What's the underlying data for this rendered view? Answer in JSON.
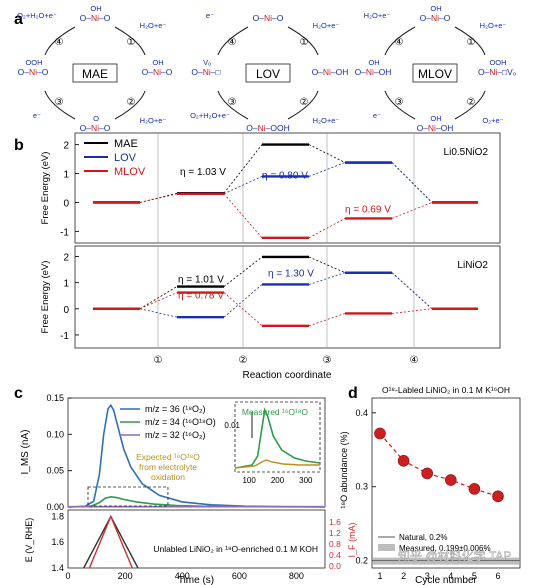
{
  "panel_letters": {
    "a": "a",
    "b": "b",
    "c": "c",
    "d": "d"
  },
  "panel_a": {
    "cycles": [
      {
        "center_label": "MAE",
        "species": {
          "top": "O–Ni–O",
          "right": "O–Ni–O",
          "bottom": "O–Ni–O",
          "left": "O–Ni–O"
        },
        "groups": {
          "top": "OH",
          "right": "OH",
          "bottom": "O",
          "left": "OOH"
        },
        "step_numbers": [
          "④",
          "①",
          "②",
          "③"
        ],
        "reactions": {
          "r4": "O₂+H₂O+e⁻",
          "r1": "H₂O+e⁻",
          "r2": "H₂O+e⁻",
          "r3": "e⁻"
        }
      },
      {
        "center_label": "LOV",
        "species": {
          "top": "O–Ni–O",
          "right": "O–Ni–OH",
          "bottom": "O–Ni–OOH",
          "left": "O–Ni–□"
        },
        "groups": {
          "top": "",
          "right": "",
          "bottom": "",
          "left": "Vₒ"
        },
        "step_numbers": [
          "④",
          "①",
          "②",
          "③"
        ],
        "reactions": {
          "r4": "e⁻",
          "r1": "H₂O+e⁻",
          "r2": "H₂O+e⁻",
          "r3": "O₂+H₂O+e⁻"
        }
      },
      {
        "center_label": "MLOV",
        "species": {
          "top": "O–Ni–O",
          "right": "O–Ni–□Vₒ",
          "bottom": "O–Ni–OH",
          "left": "O–Ni–OH"
        },
        "groups": {
          "top": "OH",
          "right": "OOH",
          "bottom": "OH",
          "left": "OH"
        },
        "step_numbers": [
          "④",
          "①",
          "②",
          "③"
        ],
        "reactions": {
          "r4": "H₂O+e⁻",
          "r1": "H₂O+e⁻",
          "r2": "O₂+e⁻",
          "r3": "e⁻"
        }
      }
    ]
  },
  "chart_data": [
    {
      "type": "line",
      "panel": "b-top",
      "annotation": "Li0.5NiO2",
      "ylabel": "Free Energy (eV)",
      "ylim": [
        -1.4,
        2.4
      ],
      "yticks": [
        -1,
        0,
        1,
        2
      ],
      "x_ticks": [
        "①",
        "②",
        "③",
        "④"
      ],
      "series": [
        {
          "name": "MAE",
          "color": "#000000",
          "values": [
            0,
            0.32,
            2.0,
            1.38,
            0
          ]
        },
        {
          "name": "LOV",
          "color": "#1a2fb0",
          "values": [
            0,
            0.3,
            0.9,
            1.38,
            0
          ]
        },
        {
          "name": "MLOV",
          "color": "#d01818",
          "values": [
            0,
            0.3,
            -1.22,
            -0.55,
            0
          ]
        }
      ],
      "overpotentials": [
        {
          "text": "η = 1.03 V",
          "color": "#000000"
        },
        {
          "text": "η = 0.80 V",
          "color": "#1a2fb0"
        },
        {
          "text": "η = 0.69 V",
          "color": "#d01818"
        }
      ]
    },
    {
      "type": "line",
      "panel": "b-bottom",
      "annotation": "LiNiO2",
      "ylabel": "Free Energy (eV)",
      "ylim": [
        -1.5,
        2.4
      ],
      "yticks": [
        -1,
        0,
        1,
        2
      ],
      "xlabel": "Reaction coordinate",
      "x_ticks": [
        "①",
        "②",
        "③",
        "④"
      ],
      "series": [
        {
          "name": "MAE",
          "color": "#000000",
          "values": [
            0,
            0.85,
            1.98,
            1.38,
            0
          ]
        },
        {
          "name": "LOV",
          "color": "#1a2fb0",
          "values": [
            0,
            -0.32,
            0.93,
            1.38,
            0
          ]
        },
        {
          "name": "MLOV",
          "color": "#d01818",
          "values": [
            0,
            0.62,
            -0.65,
            -0.18,
            0
          ]
        }
      ],
      "overpotentials": [
        {
          "text": "η = 1.01 V",
          "color": "#000000"
        },
        {
          "text": "η = 0.78 V",
          "color": "#d01818"
        },
        {
          "text": "η = 1.30 V",
          "color": "#1a2fb0"
        }
      ]
    },
    {
      "type": "line",
      "panel": "c-top",
      "ylabel": "I_MS (nA)",
      "ylim": [
        0,
        0.15
      ],
      "yticks": [
        0.0,
        0.05,
        0.1,
        0.15
      ],
      "xlim": [
        0,
        900
      ],
      "series": [
        {
          "name": "m/z = 36 (¹⁸O₂)",
          "color": "#2f6fb4",
          "x": [
            0,
            60,
            90,
            110,
            125,
            140,
            150,
            160,
            175,
            195,
            220,
            260,
            320,
            400,
            500,
            620,
            760,
            900
          ],
          "y": [
            0,
            0.001,
            0.008,
            0.045,
            0.1,
            0.135,
            0.14,
            0.133,
            0.11,
            0.08,
            0.055,
            0.032,
            0.016,
            0.007,
            0.003,
            0.0012,
            0.0005,
            0.0002
          ]
        },
        {
          "name": "m/z = 34 (¹⁶O¹⁸O)",
          "color": "#2e9a4a",
          "x": [
            0,
            80,
            110,
            130,
            150,
            170,
            200,
            240,
            300,
            380,
            480,
            600,
            900
          ],
          "y": [
            0,
            0.001,
            0.006,
            0.012,
            0.014,
            0.013,
            0.01,
            0.007,
            0.004,
            0.002,
            0.001,
            0.0004,
            0.0001
          ]
        },
        {
          "name": "m/z = 32 (¹⁶O₂)",
          "color": "#8e6bb5",
          "x": [
            0,
            300,
            600,
            900
          ],
          "y": [
            0.0005,
            0.0005,
            0.0004,
            0.0004
          ]
        }
      ],
      "inset": {
        "xlim": [
          50,
          350
        ],
        "xticks": [
          100,
          200,
          300
        ],
        "scale_label": "0.01",
        "measured_label": "Measured ¹⁶O¹⁸O",
        "expected_label": "Expected ¹⁶O¹⁸O from electrolyte oxidation",
        "measured_color": "#2e9a4a",
        "expected_color": "#b8901e"
      }
    },
    {
      "type": "line",
      "panel": "c-bottom",
      "ylabel": "E (V_RHE)",
      "ylabel_right": "I_F (mA)",
      "xlabel": "Time (s)",
      "ylim": [
        1.4,
        1.85
      ],
      "yticks": [
        1.4,
        1.6,
        1.8
      ],
      "yticks_right": [
        0.0,
        0.4,
        0.8,
        1.2,
        1.6
      ],
      "xticks": [
        0,
        200,
        400,
        600,
        800
      ],
      "xlim": [
        0,
        900
      ],
      "annotation": "Unlabled LiNiO₂ in ¹⁸O-enriched 0.1 M KOH",
      "series": [
        {
          "name": "E",
          "color": "#333333",
          "x": [
            55,
            150,
            245
          ],
          "y": [
            1.4,
            1.8,
            1.4
          ]
        },
        {
          "name": "I_F",
          "color": "#d03030",
          "x": [
            75,
            150,
            225
          ],
          "y": [
            1.4,
            1.8,
            1.4
          ]
        }
      ]
    },
    {
      "type": "scatter",
      "panel": "d",
      "title": "O¹⁸-Labled LiNiO₂ in 0.1 M K¹⁶OH",
      "ylabel": "¹⁸O abundance (%)",
      "xlabel": "Cycle number",
      "ylim": [
        0.19,
        0.42
      ],
      "yticks": [
        0.2,
        0.3,
        0.4
      ],
      "xticks": [
        1,
        2,
        3,
        4,
        5,
        6
      ],
      "x": [
        1,
        2,
        3,
        4,
        5,
        6
      ],
      "y": [
        0.372,
        0.335,
        0.318,
        0.309,
        0.297,
        0.287
      ],
      "color": "#cc1f1f",
      "reference": [
        {
          "name": "Natural, 0.2%",
          "value": 0.2
        },
        {
          "name": "Measured, 0.199±0.006%",
          "value": 0.199
        }
      ]
    }
  ],
  "watermark": "知乎 @材料化学 TAP"
}
